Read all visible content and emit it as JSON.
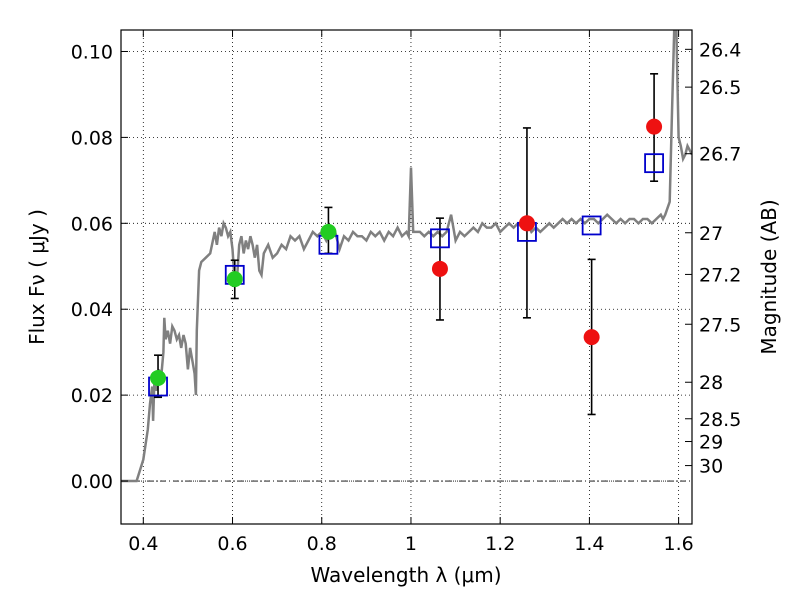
{
  "chart_data": {
    "type": "scatter",
    "xlabel": "Wavelength  λ (μm)",
    "ylabel": "Flux  Fν  ( μJy )",
    "y2label": "Magnitude (AB)",
    "xlim": [
      0.35,
      1.63
    ],
    "ylim": [
      -0.01,
      0.105
    ],
    "grid": true,
    "x_ticks": [
      0.4,
      0.6,
      0.8,
      1.0,
      1.2,
      1.4,
      1.6
    ],
    "x_tick_labels": [
      "0.4",
      "0.6",
      "0.8",
      "1",
      "1.2",
      "1.4",
      "1.6"
    ],
    "y_ticks": [
      0.0,
      0.02,
      0.04,
      0.06,
      0.08,
      0.1
    ],
    "y_tick_labels": [
      "0.00",
      "0.02",
      "0.04",
      "0.06",
      "0.08",
      "0.10"
    ],
    "mag_ticks": [
      {
        "label": "26.4",
        "flux": 0.1005
      },
      {
        "label": "26.5",
        "flux": 0.0917
      },
      {
        "label": "26.7",
        "flux": 0.0762
      },
      {
        "label": "27",
        "flux": 0.0578
      },
      {
        "label": "27.2",
        "flux": 0.0481
      },
      {
        "label": "27.5",
        "flux": 0.0365
      },
      {
        "label": "28",
        "flux": 0.023
      },
      {
        "label": "28.5",
        "flux": 0.0145
      },
      {
        "label": "29",
        "flux": 0.0092
      },
      {
        "label": "30",
        "flux": 0.0036
      }
    ],
    "series": [
      {
        "kind": "line",
        "color": "#808080",
        "points": [
          [
            0.35,
            0.0
          ],
          [
            0.385,
            0.0
          ],
          [
            0.385,
            0.0
          ],
          [
            0.4,
            0.005
          ],
          [
            0.41,
            0.012
          ],
          [
            0.415,
            0.018
          ],
          [
            0.42,
            0.022
          ],
          [
            0.422,
            0.014
          ],
          [
            0.425,
            0.024
          ],
          [
            0.43,
            0.021
          ],
          [
            0.435,
            0.026
          ],
          [
            0.44,
            0.024
          ],
          [
            0.445,
            0.03
          ],
          [
            0.447,
            0.038
          ],
          [
            0.45,
            0.033
          ],
          [
            0.455,
            0.035
          ],
          [
            0.46,
            0.032
          ],
          [
            0.465,
            0.036
          ],
          [
            0.47,
            0.035
          ],
          [
            0.475,
            0.033
          ],
          [
            0.48,
            0.034
          ],
          [
            0.485,
            0.031
          ],
          [
            0.49,
            0.034
          ],
          [
            0.495,
            0.032
          ],
          [
            0.5,
            0.026
          ],
          [
            0.505,
            0.031
          ],
          [
            0.51,
            0.028
          ],
          [
            0.515,
            0.025
          ],
          [
            0.518,
            0.02
          ],
          [
            0.52,
            0.035
          ],
          [
            0.525,
            0.049
          ],
          [
            0.53,
            0.051
          ],
          [
            0.54,
            0.052
          ],
          [
            0.55,
            0.053
          ],
          [
            0.56,
            0.058
          ],
          [
            0.565,
            0.055
          ],
          [
            0.57,
            0.059
          ],
          [
            0.575,
            0.057
          ],
          [
            0.58,
            0.06
          ],
          [
            0.585,
            0.059
          ],
          [
            0.59,
            0.057
          ],
          [
            0.595,
            0.058
          ],
          [
            0.6,
            0.054
          ],
          [
            0.605,
            0.046
          ],
          [
            0.61,
            0.047
          ],
          [
            0.615,
            0.055
          ],
          [
            0.62,
            0.057
          ],
          [
            0.625,
            0.053
          ],
          [
            0.63,
            0.056
          ],
          [
            0.635,
            0.054
          ],
          [
            0.64,
            0.057
          ],
          [
            0.645,
            0.055
          ],
          [
            0.65,
            0.052
          ],
          [
            0.655,
            0.055
          ],
          [
            0.66,
            0.049
          ],
          [
            0.665,
            0.048
          ],
          [
            0.67,
            0.053
          ],
          [
            0.675,
            0.054
          ],
          [
            0.68,
            0.055
          ],
          [
            0.69,
            0.052
          ],
          [
            0.7,
            0.053
          ],
          [
            0.71,
            0.055
          ],
          [
            0.72,
            0.054
          ],
          [
            0.73,
            0.057
          ],
          [
            0.74,
            0.056
          ],
          [
            0.75,
            0.057
          ],
          [
            0.76,
            0.054
          ],
          [
            0.77,
            0.056
          ],
          [
            0.78,
            0.058
          ],
          [
            0.79,
            0.057
          ],
          [
            0.8,
            0.058
          ],
          [
            0.81,
            0.056
          ],
          [
            0.82,
            0.059
          ],
          [
            0.83,
            0.058
          ],
          [
            0.84,
            0.054
          ],
          [
            0.85,
            0.057
          ],
          [
            0.86,
            0.056
          ],
          [
            0.87,
            0.058
          ],
          [
            0.88,
            0.057
          ],
          [
            0.89,
            0.057
          ],
          [
            0.9,
            0.056
          ],
          [
            0.91,
            0.058
          ],
          [
            0.92,
            0.057
          ],
          [
            0.93,
            0.058
          ],
          [
            0.94,
            0.056
          ],
          [
            0.95,
            0.058
          ],
          [
            0.96,
            0.057
          ],
          [
            0.97,
            0.059
          ],
          [
            0.98,
            0.057
          ],
          [
            0.99,
            0.058
          ],
          [
            0.995,
            0.057
          ],
          [
            1.0,
            0.073
          ],
          [
            1.005,
            0.058
          ],
          [
            1.01,
            0.058
          ],
          [
            1.02,
            0.058
          ],
          [
            1.03,
            0.057
          ],
          [
            1.04,
            0.058
          ],
          [
            1.05,
            0.057
          ],
          [
            1.06,
            0.058
          ],
          [
            1.07,
            0.057
          ],
          [
            1.08,
            0.058
          ],
          [
            1.09,
            0.062
          ],
          [
            1.1,
            0.056
          ],
          [
            1.11,
            0.058
          ],
          [
            1.12,
            0.057
          ],
          [
            1.13,
            0.058
          ],
          [
            1.14,
            0.059
          ],
          [
            1.15,
            0.058
          ],
          [
            1.16,
            0.06
          ],
          [
            1.17,
            0.059
          ],
          [
            1.18,
            0.059
          ],
          [
            1.19,
            0.06
          ],
          [
            1.2,
            0.058
          ],
          [
            1.21,
            0.059
          ],
          [
            1.22,
            0.06
          ],
          [
            1.23,
            0.059
          ],
          [
            1.24,
            0.06
          ],
          [
            1.25,
            0.059
          ],
          [
            1.26,
            0.06
          ],
          [
            1.27,
            0.058
          ],
          [
            1.28,
            0.059
          ],
          [
            1.29,
            0.058
          ],
          [
            1.3,
            0.059
          ],
          [
            1.31,
            0.06
          ],
          [
            1.32,
            0.059
          ],
          [
            1.33,
            0.06
          ],
          [
            1.34,
            0.061
          ],
          [
            1.35,
            0.06
          ],
          [
            1.36,
            0.061
          ],
          [
            1.37,
            0.06
          ],
          [
            1.38,
            0.061
          ],
          [
            1.39,
            0.06
          ],
          [
            1.4,
            0.061
          ],
          [
            1.41,
            0.061
          ],
          [
            1.42,
            0.06
          ],
          [
            1.43,
            0.061
          ],
          [
            1.44,
            0.062
          ],
          [
            1.45,
            0.061
          ],
          [
            1.46,
            0.06
          ],
          [
            1.47,
            0.061
          ],
          [
            1.48,
            0.06
          ],
          [
            1.49,
            0.061
          ],
          [
            1.5,
            0.061
          ],
          [
            1.51,
            0.06
          ],
          [
            1.52,
            0.061
          ],
          [
            1.53,
            0.061
          ],
          [
            1.54,
            0.06
          ],
          [
            1.55,
            0.061
          ],
          [
            1.56,
            0.062
          ],
          [
            1.565,
            0.061
          ],
          [
            1.57,
            0.062
          ],
          [
            1.58,
            0.065
          ],
          [
            1.585,
            0.085
          ],
          [
            1.59,
            0.105
          ],
          [
            1.595,
            0.105
          ],
          [
            1.6,
            0.08
          ],
          [
            1.605,
            0.078
          ],
          [
            1.61,
            0.075
          ],
          [
            1.615,
            0.076
          ],
          [
            1.62,
            0.078
          ],
          [
            1.63,
            0.076
          ]
        ]
      },
      {
        "kind": "open-square",
        "color": "#0000cc",
        "x": [
          0.433,
          0.605,
          0.815,
          1.065,
          1.26,
          1.405,
          1.545
        ],
        "y": [
          0.022,
          0.048,
          0.055,
          0.0565,
          0.058,
          0.0595,
          0.074
        ]
      },
      {
        "kind": "circle",
        "color": "#22cc22",
        "x": [
          0.433,
          0.605,
          0.815
        ],
        "y": [
          0.024,
          0.047,
          0.058
        ],
        "yerr_low": [
          0.0195,
          0.0425,
          0.053
        ],
        "yerr_high": [
          0.0293,
          0.0514,
          0.0637
        ]
      },
      {
        "kind": "circle",
        "color": "#ee1111",
        "x": [
          1.065,
          1.26,
          1.405,
          1.545
        ],
        "y": [
          0.0494,
          0.06,
          0.0335,
          0.0825
        ],
        "yerr_low": [
          0.0375,
          0.038,
          0.0155,
          0.0698
        ],
        "yerr_high": [
          0.0612,
          0.0822,
          0.0516,
          0.0948
        ]
      }
    ]
  }
}
